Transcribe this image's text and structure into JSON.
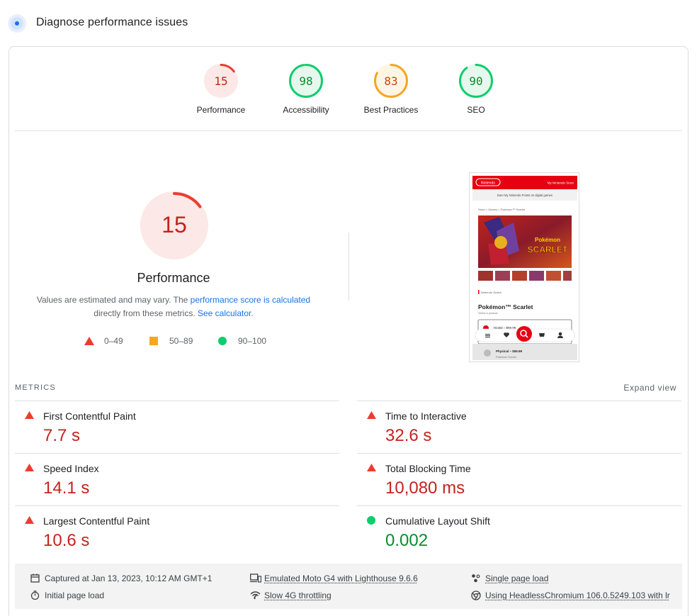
{
  "header": {
    "title": "Diagnose performance issues",
    "icon": "lighthouse-icon"
  },
  "gauges": [
    {
      "score": "15",
      "label": "Performance",
      "value": 0.15,
      "status": "fail"
    },
    {
      "score": "98",
      "label": "Accessibility",
      "value": 0.98,
      "status": "pass"
    },
    {
      "score": "83",
      "label": "Best Practices",
      "value": 0.83,
      "status": "average"
    },
    {
      "score": "90",
      "label": "SEO",
      "value": 0.9,
      "status": "pass"
    }
  ],
  "colors": {
    "fail": "#eb3d2f",
    "fail_bg": "#fce8e6",
    "fail_text": "#c5221f",
    "average": "#f5a623",
    "average_bg": "#fef5e5",
    "average_text": "#c4490f",
    "pass": "#0cce6b",
    "pass_bg": "#e6f8ee",
    "pass_text": "#0d8a2e"
  },
  "performance": {
    "score": "15",
    "value": 0.15,
    "title": "Performance",
    "note_prefix": "Values are estimated and may vary. The ",
    "note_link": "performance score is calculated",
    "note_middle": " directly from these metrics. ",
    "note_link2": "See calculator",
    "note_suffix": "."
  },
  "legend": [
    {
      "range": "0–49",
      "shape": "triangle"
    },
    {
      "range": "50–89",
      "shape": "square"
    },
    {
      "range": "90–100",
      "shape": "circle"
    }
  ],
  "screenshot": {
    "brand": "Nintendo",
    "store_link": "My Nintendo Store",
    "promo": "Earn My Nintendo Points on digital games",
    "breadcrumb": "Store  >  Games  >  Pokémon™ Scarlet",
    "hero_line1": "Pokémon",
    "hero_line2": "SCARLET",
    "platform": "Nintendo Switch",
    "product_title": "Pokémon™ Scarlet",
    "select_text": "Select a product:",
    "option_digital": "Digital – $59.99",
    "option_physical": "Physical – $59.99",
    "option_sub": "Pokémon Scarlet"
  },
  "metrics": {
    "title": "METRICS",
    "expand": "Expand view",
    "items": [
      {
        "label": "First Contentful Paint",
        "value": "7.7 s",
        "status": "fail"
      },
      {
        "label": "Time to Interactive",
        "value": "32.6 s",
        "status": "fail"
      },
      {
        "label": "Speed Index",
        "value": "14.1 s",
        "status": "fail"
      },
      {
        "label": "Total Blocking Time",
        "value": "10,080 ms",
        "status": "fail"
      },
      {
        "label": "Largest Contentful Paint",
        "value": "10.6 s",
        "status": "fail"
      },
      {
        "label": "Cumulative Layout Shift",
        "value": "0.002",
        "status": "pass"
      }
    ]
  },
  "footer": {
    "captured": "Captured at Jan 13, 2023, 10:12 AM GMT+1",
    "initial": "Initial page load",
    "device": "Emulated Moto G4 with Lighthouse 9.6.6",
    "throttling": "Slow 4G throttling",
    "single": "Single page load",
    "browser": "Using HeadlessChromium 106.0.5249.103 with lr"
  }
}
